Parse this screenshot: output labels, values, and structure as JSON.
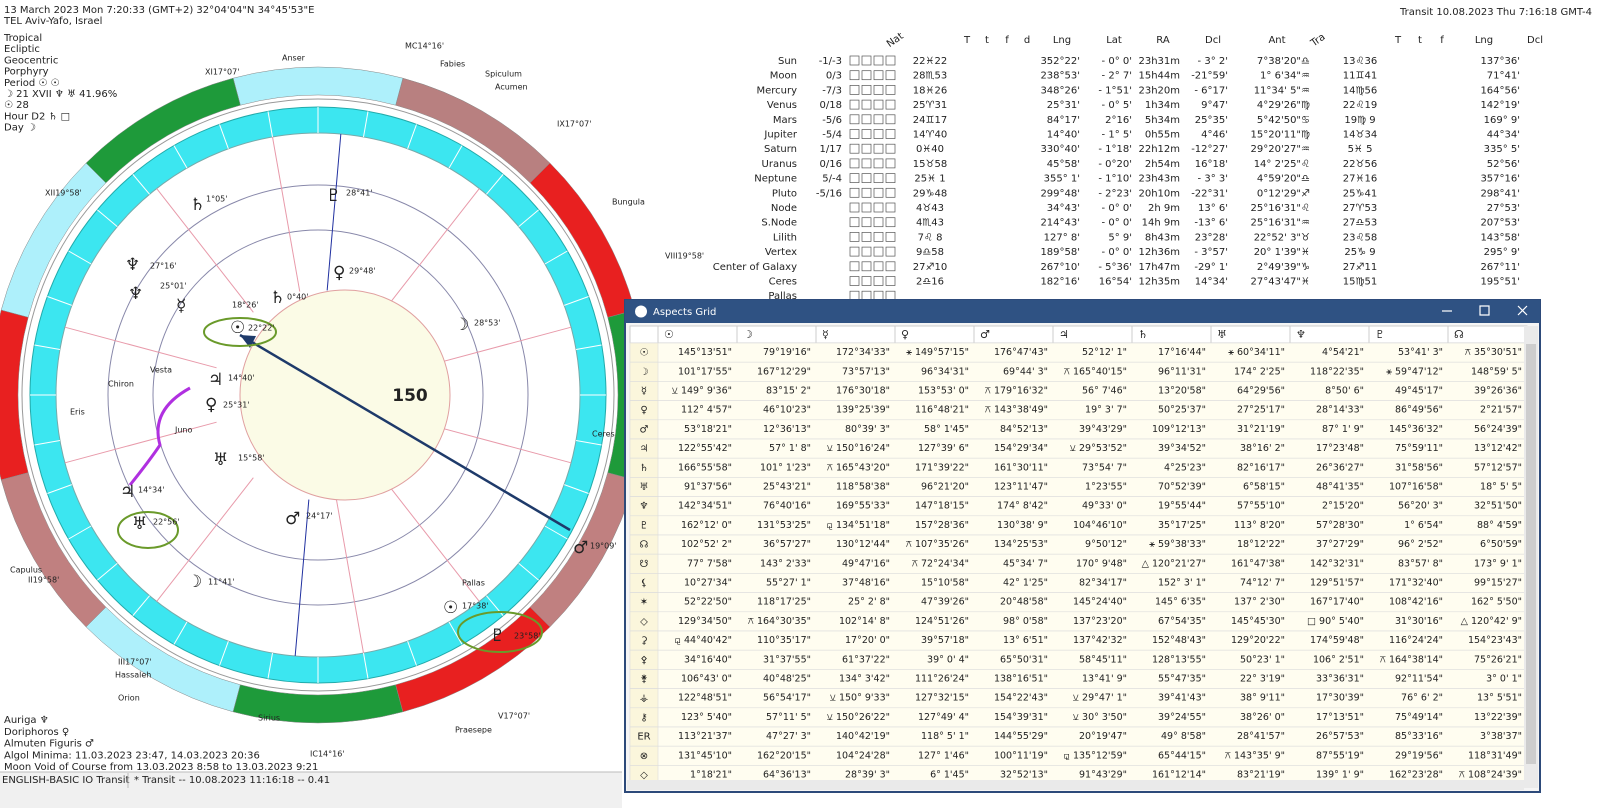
{
  "header": {
    "date_line": "13 March 2023  Mon   7:20:33 (GMT+2) 32°04'04\"N  34°45'53\"E",
    "place": "TEL Aviv-Yafo, Israel",
    "settings": [
      "Tropical",
      "Ecliptic",
      "Geocentric",
      "Porphyry",
      "Period ☉ ☉",
      "☽ 21 XVII ♆ ♅ 41.96%",
      "☉ 28",
      "Hour D2 ♄ □",
      "Day ☽"
    ]
  },
  "transit_line": "Transit 10.08.2023  Thu  7:16:18 GMT-4",
  "footer": [
    "Auriga ♆",
    "Doriphoros ♀",
    "Almuten Figuris ♂",
    "Algol Minima: 11.03.2023 23:47, 14.03.2023 20:36",
    "Moon Void of Course from 13.03.2023  8:58 to 13.03.2023  9:21"
  ],
  "status": [
    "ENGLISH-BASIC IO Transit",
    "* Transit -- 10.08.2023 11:16:18 -- 0.41"
  ],
  "wheel": {
    "annotation": "150",
    "labels": [
      "MC14°16'",
      "XI17°07'",
      "IX17°07'",
      "XII19°58'",
      "VIII19°58'",
      "II19°58'",
      "IC14°16'",
      "V17°07'",
      "III17°07'",
      "Anser",
      "Fabies",
      "Spiculum",
      "Acumen",
      "Bungula",
      "Capulus",
      "Hassaleh",
      "Sirius",
      "Praesepe",
      "Orion",
      "Chiron",
      "Vesta",
      "Juno",
      "Eris",
      "Pallas",
      "Ceres",
      "♆",
      "25°01'",
      "☿",
      "18°26'",
      "☉",
      "22°22'",
      "♃",
      "14°40'",
      "♀",
      "25°31'",
      "♅",
      "15°58'",
      "♂",
      "24°17'",
      "♄",
      "0°40'",
      "♀",
      "29°48'",
      "☽",
      "28°53'",
      "☽",
      "11°41'",
      "☉",
      "17°38'",
      "♇",
      "23°58'",
      "♂",
      "19°09'",
      "♅",
      "22°56'",
      "♃",
      "14°34'",
      "♆",
      "27°16'",
      "♄",
      "1°05'",
      "♇",
      "28°41'"
    ]
  },
  "planets_table": {
    "headers": [
      "Nat",
      "T",
      "t",
      "f",
      "d",
      "Lng",
      "Lat",
      "RA",
      "Dcl",
      "Ant",
      "Tra",
      "T",
      "t",
      "f",
      "Lng",
      "Dcl"
    ],
    "rows": [
      [
        "Sun",
        "-1/-3",
        "22♓22",
        "352°22'",
        "- 0° 0'",
        "23h31m",
        "- 3° 2'",
        "7°38'20\"♎",
        "13♌36",
        "137°36'"
      ],
      [
        "Moon",
        "0/3",
        "28♏53",
        "238°53'",
        "- 2° 7'",
        "15h44m",
        "-21°59'",
        "1° 6'34\"♒",
        "11♊41",
        "71°41'"
      ],
      [
        "Mercury",
        "-7/3",
        "18♓26",
        "348°26'",
        "- 1°51'",
        "23h20m",
        "- 6°17'",
        "11°34' 5\"♒",
        "14♍56",
        "164°56'"
      ],
      [
        "Venus",
        "0/18",
        "25♈31",
        "25°31'",
        "- 0° 5'",
        "1h34m",
        "9°47'",
        "4°29'26\"♍",
        "22♌19",
        "142°19'"
      ],
      [
        "Mars",
        "-5/6",
        "24♊17",
        "84°17'",
        "2°16'",
        "5h34m",
        "25°35'",
        "5°42'50\"♋",
        "19♍ 9",
        "169° 9'"
      ],
      [
        "Jupiter",
        "-5/4",
        "14♈40",
        "14°40'",
        "- 1° 5'",
        "0h55m",
        "4°46'",
        "15°20'11\"♍",
        "14♉34",
        "44°34'"
      ],
      [
        "Saturn",
        "1/17",
        "0♓40",
        "330°40'",
        "- 1°18'",
        "22h12m",
        "-12°27'",
        "29°20'27\"♒",
        "5♓ 5",
        "335° 5'"
      ],
      [
        "Uranus",
        "0/16",
        "15♉58",
        "45°58'",
        "- 0°20'",
        "2h54m",
        "16°18'",
        "14° 2'25\"♌",
        "22♉56",
        "52°56'"
      ],
      [
        "Neptune",
        "5/-4",
        "25♓ 1",
        "355° 1'",
        "- 1°10'",
        "23h43m",
        "- 3° 3'",
        "4°59'20\"♎",
        "27♓16",
        "357°16'"
      ],
      [
        "Pluto",
        "-5/16",
        "29♑48",
        "299°48'",
        "- 2°23'",
        "20h10m",
        "-22°31'",
        "0°12'29\"♐",
        "25♑41",
        "298°41'"
      ],
      [
        "Node",
        "",
        "4♉43",
        "34°43'",
        "- 0° 0'",
        "2h 9m",
        "13° 6'",
        "25°16'31\"♌",
        "27♈53",
        "27°53'"
      ],
      [
        "S.Node",
        "",
        "4♏43",
        "214°43'",
        "- 0° 0'",
        "14h 9m",
        "-13° 6'",
        "25°16'31\"♒",
        "27♎53",
        "207°53'"
      ],
      [
        "Lilith",
        "",
        "7♌ 8",
        "127° 8'",
        "5° 9'",
        "8h43m",
        "23°28'",
        "22°52' 3\"♉",
        "23♌58",
        "143°58'"
      ],
      [
        "Vertex",
        "",
        "9♎58",
        "189°58'",
        "- 0° 0'",
        "12h36m",
        "- 3°57'",
        "20° 1'39\"♓",
        "25♑ 9",
        "295° 9'"
      ],
      [
        "Center of Galaxy",
        "",
        "27♐10",
        "267°10'",
        "- 5°36'",
        "17h47m",
        "-29° 1'",
        "2°49'39\"♑",
        "27♐11",
        "267°11'"
      ],
      [
        "Ceres",
        "",
        "2♎16",
        "182°16'",
        "16°54'",
        "12h35m",
        "14°34'",
        "27°43'47\"♓",
        "15♍51",
        "195°51'"
      ],
      [
        "Pallas"
      ]
    ]
  },
  "aspects_grid": {
    "title": "Aspects Grid",
    "columns": [
      "☉",
      "☽",
      "☿",
      "♀",
      "♂",
      "♃",
      "♄",
      "♅",
      "♆",
      "♇",
      "☊"
    ],
    "rows": [
      {
        "label": "☉",
        "cells": [
          "145°13'51\"",
          "79°19'16\"",
          "172°34'33\"",
          {
            "text": "⚹ 149°57'15\"",
            "color": "#2e9e2e"
          },
          "176°47'43\"",
          "52°12' 1\"",
          "17°16'44\"",
          {
            "text": "⚹ 60°34'11\"",
            "color": "#3b6fd8"
          },
          "4°54'21\"",
          "53°41' 3\"",
          {
            "text": "⚻ 35°30'51\"",
            "color": "#e07b00"
          }
        ]
      },
      {
        "label": "☽",
        "cells": [
          "101°17'55\"",
          "167°12'29\"",
          "73°57'13\"",
          "96°34'31\"",
          "69°44' 3\"",
          {
            "text": "⚻ 165°40'15\"",
            "color": "#d42020"
          },
          "96°11'31\"",
          "174° 2'25\"",
          "118°22'35\"",
          {
            "text": "⚹ 59°47'12\"",
            "color": "#3b6fd8"
          },
          "148°59' 5\""
        ]
      },
      {
        "label": "☿",
        "cells": [
          {
            "text": "⚺ 149° 9'36\"",
            "color": "#2e9e2e"
          },
          "83°15' 2\"",
          "176°30'18\"",
          "153°53' 0\"",
          "⚻ 179°16'32\"",
          "56° 7'46\"",
          "13°20'58\"",
          "64°29'56\"",
          "8°50' 6\"",
          "49°45'17\"",
          "39°26'36\""
        ]
      },
      {
        "label": "♀",
        "cells": [
          "112° 4'57\"",
          "46°10'23\"",
          "139°25'39\"",
          "116°48'21\"",
          {
            "text": "⚻ 143°38'49\"",
            "color": "#e07b00"
          },
          "19° 3' 7\"",
          "50°25'37\"",
          "27°25'17\"",
          "28°14'33\"",
          "86°49'56\"",
          "2°21'57\""
        ]
      },
      {
        "label": "♂",
        "cells": [
          "53°18'21\"",
          "12°36'13\"",
          "80°39' 3\"",
          "58° 1'45\"",
          "84°52'13\"",
          "39°43'29\"",
          "109°12'13\"",
          "31°21'19\"",
          "87° 1' 9\"",
          "145°36'32\"",
          "56°24'39\""
        ]
      },
      {
        "label": "♃",
        "cells": [
          "122°55'42\"",
          "57° 1' 8\"",
          {
            "text": "⚺ 150°16'24\"",
            "color": "#2e9e2e"
          },
          "127°39' 6\"",
          "154°29'34\"",
          {
            "text": "⚺ 29°53'52\"",
            "color": "#2e9e2e"
          },
          "39°34'52\"",
          "38°16' 2\"",
          "17°23'48\"",
          "75°59'11\"",
          "13°12'42\""
        ]
      },
      {
        "label": "♄",
        "cells": [
          "166°55'58\"",
          "101° 1'23\"",
          {
            "text": "⚻ 165°43'20\"",
            "color": "#d42020"
          },
          "171°39'22\"",
          "161°30'11\"",
          "73°54' 7\"",
          "4°25'23\"",
          "82°16'17\"",
          "26°36'27\"",
          "31°58'56\"",
          "57°12'57\""
        ]
      },
      {
        "label": "♅",
        "cells": [
          "91°37'56\"",
          "25°43'21\"",
          "118°58'38\"",
          "96°21'20\"",
          "123°11'47\"",
          "1°23'55\"",
          "70°52'39\"",
          "6°58'15\"",
          "48°41'35\"",
          "107°16'58\"",
          "18° 5' 5\""
        ]
      },
      {
        "label": "♆",
        "cells": [
          "142°34'51\"",
          "76°40'16\"",
          "169°55'33\"",
          "147°18'15\"",
          "174° 8'42\"",
          "49°33' 0\"",
          "19°55'44\"",
          "57°55'10\"",
          "2°15'20\"",
          "56°20' 3\"",
          "32°51'50\""
        ]
      },
      {
        "label": "♇",
        "cells": [
          "162°12' 0\"",
          "131°53'25\"",
          {
            "text": "⚼ 134°51'18\"",
            "color": "#2e9e2e"
          },
          "157°28'36\"",
          "130°38' 9\"",
          "104°46'10\"",
          "35°17'25\"",
          "113° 8'20\"",
          "57°28'30\"",
          "1° 6'54\"",
          "88° 4'59\""
        ]
      },
      {
        "label": "☊",
        "cells": [
          "102°52' 2\"",
          "36°57'27\"",
          "130°12'44\"",
          {
            "text": "⚻ 107°35'26\"",
            "color": "#e07b00"
          },
          "134°25'53\"",
          "9°50'12\"",
          {
            "text": "⚹ 59°38'33\"",
            "color": "#3b6fd8"
          },
          "18°12'22\"",
          "37°27'29\"",
          "96° 2'52\"",
          "6°50'59\""
        ]
      },
      {
        "label": "☋",
        "cells": [
          "77° 7'58\"",
          "143° 2'33\"",
          "49°47'16\"",
          {
            "text": "⚻ 72°24'34\"",
            "color": "#e07b00"
          },
          "45°34' 7\"",
          "170° 9'48\"",
          {
            "text": "△ 120°21'27\"",
            "color": "#3b6fd8"
          },
          "161°47'38\"",
          "142°32'31\"",
          "83°57' 8\"",
          "173° 9' 1\""
        ]
      },
      {
        "label": "⚸",
        "cells": [
          "10°27'34\"",
          "55°27' 1\"",
          "37°48'16\"",
          "15°10'58\"",
          "42° 1'25\"",
          "82°34'17\"",
          "152° 3' 1\"",
          "74°12' 7\"",
          "129°51'57\"",
          "171°32'40\"",
          "99°15'27\""
        ]
      },
      {
        "label": "✶",
        "cells": [
          "52°22'50\"",
          "118°17'25\"",
          "25° 2' 8\"",
          "47°39'26\"",
          "20°48'58\"",
          "145°24'40\"",
          "145° 6'35\"",
          "137° 2'30\"",
          "167°17'40\"",
          "108°42'16\"",
          "162° 5'50\""
        ]
      },
      {
        "label": "◇",
        "cells": [
          "129°34'50\"",
          {
            "text": "⚻ 164°30'35\"",
            "color": "#d42020"
          },
          "102°14' 8\"",
          "124°51'26\"",
          "98° 0'58\"",
          "137°23'20\"",
          "67°54'35\"",
          "145°45'30\"",
          {
            "text": "□ 90° 5'40\"",
            "color": "#d42020"
          },
          "31°30'16\"",
          {
            "text": "△ 120°42' 9\"",
            "color": "#3b6fd8"
          }
        ]
      },
      {
        "label": "⚳",
        "cells": [
          {
            "text": "⚼ 44°40'42\"",
            "color": "#d42020"
          },
          "110°35'17\"",
          "17°20' 0\"",
          "39°57'18\"",
          "13° 6'51\"",
          "137°42'32\"",
          "152°48'43\"",
          "129°20'22\"",
          "174°59'48\"",
          "116°24'24\"",
          "154°23'43\""
        ]
      },
      {
        "label": "⚴",
        "cells": [
          "34°16'40\"",
          "31°37'55\"",
          "61°37'22\"",
          "39° 0' 4\"",
          "65°50'31\"",
          "58°45'11\"",
          "128°13'55\"",
          "50°23' 1\"",
          "106° 2'51\"",
          {
            "text": "⚻ 164°38'14\"",
            "color": "#2e9e2e"
          },
          "75°26'21\""
        ]
      },
      {
        "label": "⚵",
        "cells": [
          "106°43' 0\"",
          "40°48'25\"",
          "134° 3'42\"",
          "111°26'24\"",
          "138°16'51\"",
          "13°41' 9\"",
          "55°47'35\"",
          "22° 3'19\"",
          "33°36'31\"",
          "92°11'54\"",
          "3° 0' 1\""
        ]
      },
      {
        "label": "⚶",
        "cells": [
          "122°48'51\"",
          "56°54'17\"",
          {
            "text": "⚺ 150° 9'33\"",
            "color": "#2e9e2e"
          },
          "127°32'15\"",
          "154°22'43\"",
          {
            "text": "⚺ 29°47' 1\"",
            "color": "#2e9e2e"
          },
          "39°41'43\"",
          "38° 9'11\"",
          "17°30'39\"",
          "76° 6' 2\"",
          "13° 5'51\""
        ]
      },
      {
        "label": "⚷",
        "cells": [
          "123° 5'40\"",
          "57°11' 5\"",
          {
            "text": "⚺ 150°26'22\"",
            "color": "#2e9e2e"
          },
          "127°49' 4\"",
          "154°39'31\"",
          {
            "text": "⚺ 30° 3'50\"",
            "color": "#2e9e2e"
          },
          "39°24'55\"",
          "38°26' 0\"",
          "17°13'51\"",
          "75°49'14\"",
          "13°22'39\""
        ]
      },
      {
        "label": "ER",
        "cells": [
          "113°21'37\"",
          "47°27' 3\"",
          "140°42'19\"",
          "118° 5' 1\"",
          "144°55'29\"",
          "20°19'47\"",
          "49° 8'58\"",
          "28°41'57\"",
          "26°57'53\"",
          "85°33'16\"",
          "3°38'37\""
        ]
      },
      {
        "label": "⊗",
        "cells": [
          "131°45'10\"",
          "162°20'15\"",
          "104°24'28\"",
          "127° 1'46\"",
          "100°11'19\"",
          {
            "text": "⚼ 135°12'59\"",
            "color": "#2e9e2e"
          },
          "65°44'15\"",
          {
            "text": "⚻ 143°35' 9\"",
            "color": "#e07b00"
          },
          "87°55'19\"",
          "29°19'56\"",
          "118°31'49\""
        ]
      },
      {
        "label": "◇",
        "cells": [
          "1°18'21\"",
          "64°36'13\"",
          "28°39' 3\"",
          "6° 1'45\"",
          "32°52'13\"",
          "91°43'29\"",
          "161°12'14\"",
          "83°21'19\"",
          "139° 1' 9\"",
          "162°23'28\"",
          {
            "text": "⚻ 108°24'39\"",
            "color": "#e07b00"
          }
        ]
      }
    ]
  }
}
